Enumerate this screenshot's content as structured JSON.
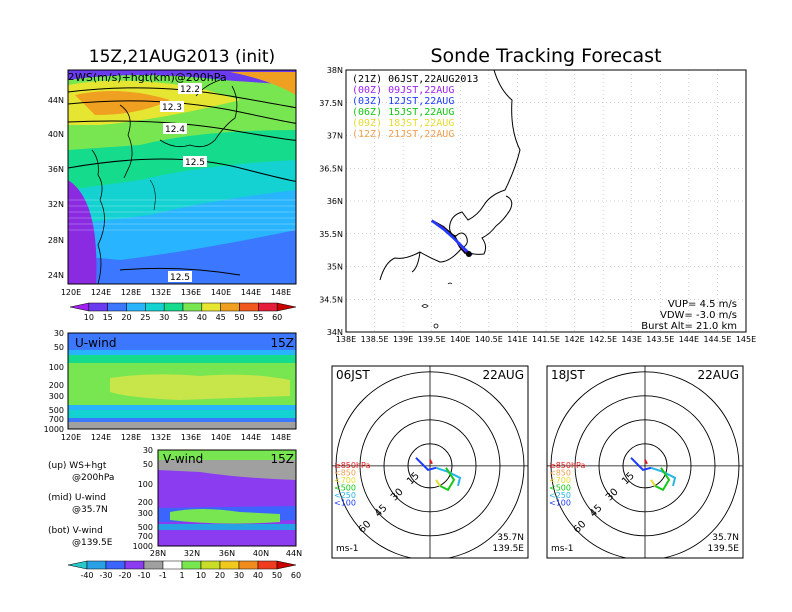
{
  "titles": {
    "left": "15Z,21AUG2013 (init)",
    "right": "Sonde Tracking Forecast"
  },
  "map_panel": {
    "label": "WS(m/s)+hgt(km)@200hPa",
    "corner_mark": "2",
    "lat_labels": [
      "44N",
      "40N",
      "36N",
      "32N",
      "28N",
      "24N"
    ],
    "lon_labels": [
      "120E",
      "124E",
      "128E",
      "132E",
      "136E",
      "140E",
      "144E",
      "148E"
    ],
    "contour_labels": [
      "12.2",
      "12.3",
      "12.4",
      "12.5",
      "12.5"
    ],
    "colorbar": {
      "ticks": [
        "10",
        "15",
        "20",
        "25",
        "30",
        "35",
        "40",
        "45",
        "50",
        "55",
        "60"
      ],
      "colors": [
        "#a020f0",
        "#6a3cf0",
        "#3c78ff",
        "#28b4ff",
        "#14d2d2",
        "#14dc8c",
        "#78e650",
        "#e6e632",
        "#f0a020",
        "#f05a1e",
        "#e61e3c",
        "#c80000"
      ]
    }
  },
  "uwind_panel": {
    "label": "U-wind",
    "time": "15Z",
    "y_ticks": [
      "30",
      "50",
      "100",
      "200",
      "300",
      "500",
      "700",
      "1000"
    ],
    "x_ticks": [
      "120E",
      "124E",
      "128E",
      "132E",
      "136E",
      "140E",
      "144E",
      "148E"
    ]
  },
  "vwind_panel": {
    "label": "V-wind",
    "time": "15Z",
    "y_ticks": [
      "30",
      "50",
      "100",
      "200",
      "300",
      "500",
      "700",
      "1000"
    ],
    "x_ticks": [
      "28N",
      "32N",
      "36N",
      "40N",
      "44N"
    ],
    "colorbar": {
      "ticks": [
        "-40",
        "-30",
        "-20",
        "-10",
        "-1",
        "1",
        "10",
        "20",
        "30",
        "40",
        "50",
        "60"
      ],
      "colors": [
        "#28c8c8",
        "#28a0e6",
        "#3c64ff",
        "#8c3cf0",
        "#a0a0a0",
        "#ffffff",
        "#78e650",
        "#c8dc28",
        "#f0c81e",
        "#f08c1e",
        "#f03c1e",
        "#c80000"
      ]
    }
  },
  "legend_notes": [
    {
      "line1": "(up) WS+hgt",
      "line2": "@200hPa"
    },
    {
      "line1": "(mid) U-wind",
      "line2": "@35.7N"
    },
    {
      "line1": "(bot) V-wind",
      "line2": "@139.5E"
    }
  ],
  "track_panel": {
    "lat_labels": [
      "38N",
      "37.5N",
      "37N",
      "36.5N",
      "36N",
      "35.5N",
      "35N",
      "34.5N",
      "34N"
    ],
    "lon_labels": [
      "138E",
      "138.5E",
      "139E",
      "139.5E",
      "140E",
      "140.5E",
      "141E",
      "141.5E",
      "142E",
      "142.5E",
      "143E",
      "143.5E",
      "144E",
      "144.5E",
      "145E"
    ],
    "legend": [
      {
        "text": "(21Z) 06JST,22AUG2013",
        "color": "#000000"
      },
      {
        "text": "(00Z) 09JST,22AUG",
        "color": "#a020f0"
      },
      {
        "text": "(03Z) 12JST,22AUG",
        "color": "#1e3cff"
      },
      {
        "text": "(06Z) 15JST,22AUG",
        "color": "#14c814"
      },
      {
        "text": "(09Z) 18JST,22AUG",
        "color": "#e6dc32"
      },
      {
        "text": "(12Z) 21JST,22AUG",
        "color": "#f0a050"
      }
    ],
    "vup": "VUP= 4.5 m/s",
    "vdw": "VDW= -3.0 m/s",
    "burst": "Burst Alt= 21.0 km"
  },
  "hodographs": [
    {
      "time": "06JST",
      "date": "22AUG",
      "rings": [
        "15",
        "30",
        "45",
        "60"
      ],
      "unit": "ms-1",
      "lat": "35.7N",
      "lon": "139.5E",
      "levels": [
        {
          "text": "≥850hPa",
          "color": "#e61e1e"
        },
        {
          "text": "<850",
          "color": "#f0a050"
        },
        {
          "text": "<700",
          "color": "#e6dc32"
        },
        {
          "text": "<500",
          "color": "#14c814"
        },
        {
          "text": "<250",
          "color": "#28b4e6"
        },
        {
          "text": "<100",
          "color": "#1e3cff"
        }
      ]
    },
    {
      "time": "18JST",
      "date": "22AUG",
      "rings": [
        "15",
        "30",
        "45",
        "60"
      ],
      "unit": "ms-1",
      "lat": "35.7N",
      "lon": "139.5E",
      "levels": [
        {
          "text": "≥850hPa",
          "color": "#e61e1e"
        },
        {
          "text": "<850",
          "color": "#f0a050"
        },
        {
          "text": "<700",
          "color": "#e6dc32"
        },
        {
          "text": "<500",
          "color": "#14c814"
        },
        {
          "text": "<250",
          "color": "#28b4e6"
        },
        {
          "text": "<100",
          "color": "#1e3cff"
        }
      ]
    }
  ],
  "chart_data": [
    {
      "type": "heatmap",
      "title": "15Z,21AUG2013 (init)",
      "subtitle": "WS(m/s)+hgt(km)@200hPa",
      "xlim": [
        120,
        150
      ],
      "ylim": [
        22,
        47
      ],
      "contours_km": [
        12.2,
        12.3,
        12.4,
        12.5,
        12.5
      ],
      "colorbar_levels": [
        10,
        15,
        20,
        25,
        30,
        35,
        40,
        45,
        50,
        55,
        60
      ]
    },
    {
      "type": "heatmap",
      "title": "U-wind",
      "xlim": [
        120,
        150
      ],
      "y_levels_hPa": [
        30,
        50,
        100,
        200,
        300,
        500,
        700,
        1000
      ]
    },
    {
      "type": "heatmap",
      "title": "V-wind",
      "x_lat": [
        28,
        32,
        36,
        40,
        44
      ],
      "y_levels_hPa": [
        30,
        50,
        100,
        200,
        300,
        500,
        700,
        1000
      ],
      "colorbar_levels": [
        -40,
        -30,
        -20,
        -10,
        -1,
        1,
        10,
        20,
        30,
        40,
        50,
        60
      ]
    },
    {
      "type": "line",
      "title": "Sonde Tracking Forecast",
      "xlim": [
        138,
        145
      ],
      "ylim": [
        34,
        38
      ],
      "series": [
        {
          "name": "(21Z) 06JST,22AUG2013",
          "x": [
            139.5,
            139.7,
            139.9,
            140.0,
            140.1
          ],
          "y": [
            35.7,
            35.6,
            35.45,
            35.3,
            35.2
          ]
        },
        {
          "name": "(00Z) 09JST,22AUG",
          "x": [
            139.5,
            139.7,
            139.9,
            140.05,
            140.15
          ],
          "y": [
            35.7,
            35.58,
            35.42,
            35.28,
            35.19
          ]
        },
        {
          "name": "(03Z) 12JST,22AUG",
          "x": [
            139.5,
            139.72,
            139.95,
            140.1,
            140.2
          ],
          "y": [
            35.7,
            35.56,
            35.38,
            35.25,
            35.17
          ]
        }
      ]
    }
  ]
}
